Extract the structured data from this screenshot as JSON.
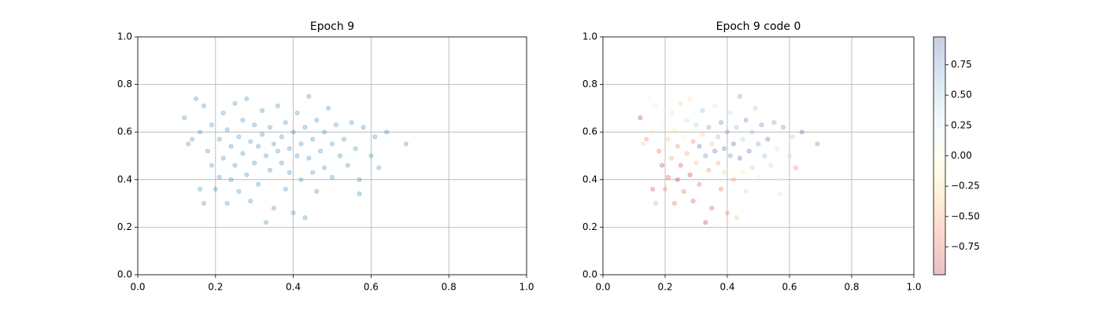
{
  "chart_data": [
    {
      "type": "scatter",
      "title": "Epoch 9",
      "color": "#1f77b4",
      "grid": true,
      "x": [
        0.12,
        0.13,
        0.14,
        0.15,
        0.16,
        0.16,
        0.17,
        0.17,
        0.18,
        0.19,
        0.19,
        0.2,
        0.21,
        0.21,
        0.22,
        0.22,
        0.23,
        0.23,
        0.24,
        0.24,
        0.25,
        0.25,
        0.26,
        0.26,
        0.27,
        0.27,
        0.28,
        0.28,
        0.29,
        0.29,
        0.3,
        0.3,
        0.31,
        0.31,
        0.32,
        0.32,
        0.33,
        0.33,
        0.34,
        0.34,
        0.35,
        0.35,
        0.36,
        0.36,
        0.37,
        0.37,
        0.38,
        0.38,
        0.39,
        0.39,
        0.4,
        0.4,
        0.41,
        0.41,
        0.42,
        0.42,
        0.43,
        0.43,
        0.44,
        0.44,
        0.45,
        0.45,
        0.46,
        0.46,
        0.47,
        0.48,
        0.48,
        0.49,
        0.5,
        0.5,
        0.51,
        0.52,
        0.53,
        0.54,
        0.55,
        0.56,
        0.57,
        0.58,
        0.6,
        0.62,
        0.64,
        0.69,
        0.57,
        0.61
      ],
      "y": [
        0.66,
        0.55,
        0.57,
        0.74,
        0.6,
        0.36,
        0.71,
        0.3,
        0.52,
        0.46,
        0.63,
        0.36,
        0.57,
        0.41,
        0.68,
        0.49,
        0.3,
        0.61,
        0.54,
        0.4,
        0.72,
        0.46,
        0.58,
        0.35,
        0.65,
        0.51,
        0.42,
        0.74,
        0.56,
        0.31,
        0.63,
        0.47,
        0.54,
        0.38,
        0.69,
        0.59,
        0.22,
        0.5,
        0.44,
        0.62,
        0.55,
        0.28,
        0.52,
        0.71,
        0.47,
        0.58,
        0.36,
        0.64,
        0.53,
        0.43,
        0.26,
        0.6,
        0.5,
        0.68,
        0.55,
        0.4,
        0.24,
        0.62,
        0.49,
        0.75,
        0.57,
        0.43,
        0.65,
        0.35,
        0.52,
        0.6,
        0.45,
        0.7,
        0.55,
        0.41,
        0.63,
        0.5,
        0.57,
        0.46,
        0.64,
        0.53,
        0.4,
        0.62,
        0.5,
        0.45,
        0.6,
        0.55,
        0.34,
        0.58
      ],
      "xlim": [
        0,
        1
      ],
      "ylim": [
        0,
        1
      ],
      "xticks": [
        {
          "value": 0,
          "label": "0.0"
        },
        0.2,
        0.4,
        0.6,
        0.8,
        {
          "value": 1,
          "label": "1.0"
        }
      ],
      "yticks": [
        {
          "value": 0,
          "label": "0.0"
        },
        0.2,
        0.4,
        0.6,
        0.8,
        {
          "value": 1,
          "label": "1.0"
        }
      ]
    },
    {
      "type": "scatter",
      "title": "Epoch 9 code 0",
      "grid": true,
      "colormap": "RdYlBu",
      "x": [
        0.12,
        0.13,
        0.14,
        0.15,
        0.16,
        0.16,
        0.17,
        0.17,
        0.18,
        0.19,
        0.19,
        0.2,
        0.21,
        0.21,
        0.22,
        0.22,
        0.23,
        0.23,
        0.24,
        0.24,
        0.25,
        0.25,
        0.26,
        0.26,
        0.27,
        0.27,
        0.28,
        0.28,
        0.29,
        0.29,
        0.3,
        0.3,
        0.31,
        0.31,
        0.32,
        0.32,
        0.33,
        0.33,
        0.34,
        0.34,
        0.35,
        0.35,
        0.36,
        0.36,
        0.37,
        0.37,
        0.38,
        0.38,
        0.39,
        0.39,
        0.4,
        0.4,
        0.41,
        0.41,
        0.42,
        0.42,
        0.43,
        0.43,
        0.44,
        0.44,
        0.45,
        0.45,
        0.46,
        0.46,
        0.47,
        0.48,
        0.48,
        0.49,
        0.5,
        0.5,
        0.51,
        0.52,
        0.53,
        0.54,
        0.55,
        0.56,
        0.57,
        0.58,
        0.6,
        0.62,
        0.64,
        0.69,
        0.57,
        0.61
      ],
      "y": [
        0.66,
        0.55,
        0.57,
        0.74,
        0.6,
        0.36,
        0.71,
        0.3,
        0.52,
        0.46,
        0.63,
        0.36,
        0.57,
        0.41,
        0.68,
        0.49,
        0.3,
        0.61,
        0.54,
        0.4,
        0.72,
        0.46,
        0.58,
        0.35,
        0.65,
        0.51,
        0.42,
        0.74,
        0.56,
        0.31,
        0.63,
        0.47,
        0.54,
        0.38,
        0.69,
        0.59,
        0.22,
        0.5,
        0.44,
        0.62,
        0.55,
        0.28,
        0.52,
        0.71,
        0.47,
        0.58,
        0.36,
        0.64,
        0.53,
        0.43,
        0.26,
        0.6,
        0.5,
        0.68,
        0.55,
        0.4,
        0.24,
        0.62,
        0.49,
        0.75,
        0.57,
        0.43,
        0.65,
        0.35,
        0.52,
        0.6,
        0.45,
        0.7,
        0.55,
        0.41,
        0.63,
        0.5,
        0.57,
        0.46,
        0.64,
        0.53,
        0.4,
        0.62,
        0.5,
        0.45,
        0.6,
        0.55,
        0.34,
        0.58
      ],
      "c": [
        -0.9,
        -0.3,
        -0.6,
        0.1,
        -0.2,
        -0.8,
        -0.1,
        -0.5,
        -0.7,
        -0.9,
        0.2,
        -0.6,
        -0.4,
        -0.8,
        0.3,
        -0.5,
        -0.7,
        -0.2,
        -0.6,
        -0.9,
        -0.3,
        -0.8,
        0.1,
        -0.7,
        0.4,
        -0.5,
        -0.9,
        -0.2,
        -0.6,
        -0.8,
        0.5,
        -0.4,
        0.9,
        -0.7,
        0.6,
        -0.3,
        -0.9,
        0.8,
        -0.6,
        0.7,
        -0.4,
        -0.8,
        0.9,
        0.3,
        -0.5,
        0.6,
        -0.7,
        0.8,
        0.9,
        -0.3,
        -0.6,
        0.7,
        0.8,
        0.4,
        0.9,
        -0.5,
        -0.4,
        0.6,
        0.9,
        0.7,
        0.5,
        -0.2,
        0.8,
        -0.3,
        0.9,
        0.6,
        -0.4,
        0.5,
        0.7,
        0.2,
        0.8,
        0.6,
        0.9,
        0.4,
        0.7,
        0.3,
        0.2,
        0.8,
        0.4,
        -0.6,
        0.9,
        0.8,
        0.3,
        0.5
      ],
      "clim": [
        -0.98,
        0.98
      ],
      "cticks": [
        {
          "value": -0.75,
          "label": "−0.75"
        },
        {
          "value": -0.5,
          "label": "−0.50"
        },
        {
          "value": -0.25,
          "label": "−0.25"
        },
        {
          "value": 0,
          "label": "0.00"
        },
        0.25,
        {
          "value": 0.5,
          "label": "0.50"
        },
        0.75
      ],
      "xlim": [
        0,
        1
      ],
      "ylim": [
        0,
        1
      ],
      "xticks": [
        {
          "value": 0,
          "label": "0.0"
        },
        0.2,
        0.4,
        0.6,
        0.8,
        {
          "value": 1,
          "label": "1.0"
        }
      ],
      "yticks": [
        {
          "value": 0,
          "label": "0.0"
        },
        0.2,
        0.4,
        0.6,
        0.8,
        {
          "value": 1,
          "label": "1.0"
        }
      ]
    }
  ]
}
